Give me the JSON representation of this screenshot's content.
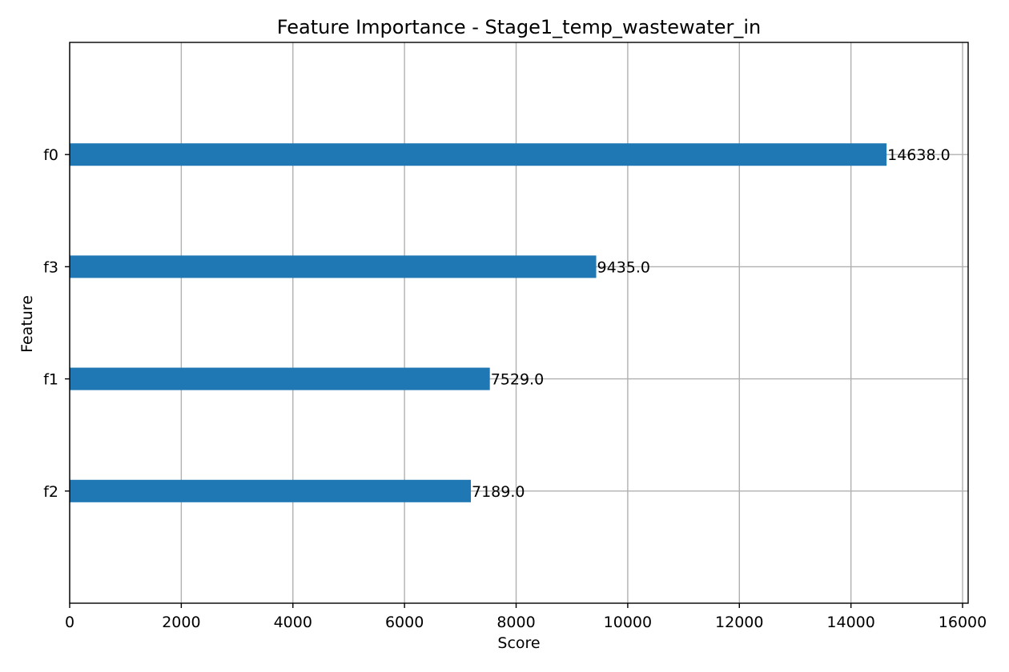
{
  "chart_data": {
    "type": "bar",
    "orientation": "horizontal",
    "title": "Feature Importance - Stage1_temp_wastewater_in",
    "xlabel": "Score",
    "ylabel": "Feature",
    "categories": [
      "f0",
      "f3",
      "f1",
      "f2"
    ],
    "values": [
      14638.0,
      9435.0,
      7529.0,
      7189.0
    ],
    "value_labels": [
      "14638.0",
      "9435.0",
      "7529.0",
      "7189.0"
    ],
    "xlim": [
      0,
      16100
    ],
    "xticks": [
      0,
      2000,
      4000,
      6000,
      8000,
      10000,
      12000,
      14000,
      16000
    ],
    "xtick_labels": [
      "0",
      "2000",
      "4000",
      "6000",
      "8000",
      "10000",
      "12000",
      "14000",
      "16000"
    ],
    "grid": true,
    "bar_color": "#1f77b4"
  }
}
